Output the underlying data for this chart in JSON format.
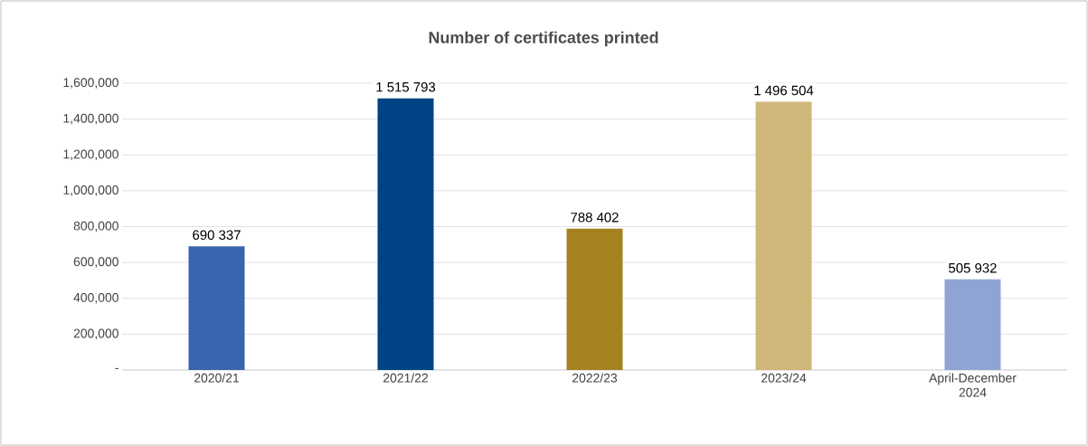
{
  "chart_data": {
    "type": "bar",
    "title": "Number of certificates printed",
    "categories": [
      "2020/21",
      "2021/22",
      "2022/23",
      "2023/24",
      "April-December 2024"
    ],
    "values": [
      690337,
      1515793,
      788402,
      1496504,
      505932
    ],
    "value_labels": [
      "690 337",
      "1 515 793",
      "788 402",
      "1 496 504",
      "505 932"
    ],
    "colors": [
      "#3a64ae",
      "#004385",
      "#a58220",
      "#d0b679",
      "#8fa4d4"
    ],
    "ylim": [
      0,
      1600000
    ],
    "yticks": [
      {
        "value": 0,
        "label": "-"
      },
      {
        "value": 200000,
        "label": "200,000"
      },
      {
        "value": 400000,
        "label": "400,000"
      },
      {
        "value": 600000,
        "label": "600,000"
      },
      {
        "value": 800000,
        "label": "800,000"
      },
      {
        "value": 1000000,
        "label": "1,000,000"
      },
      {
        "value": 1200000,
        "label": "1,200,000"
      },
      {
        "value": 1400000,
        "label": "1,400,000"
      },
      {
        "value": 1600000,
        "label": "1,600,000"
      }
    ],
    "grid": "y"
  }
}
